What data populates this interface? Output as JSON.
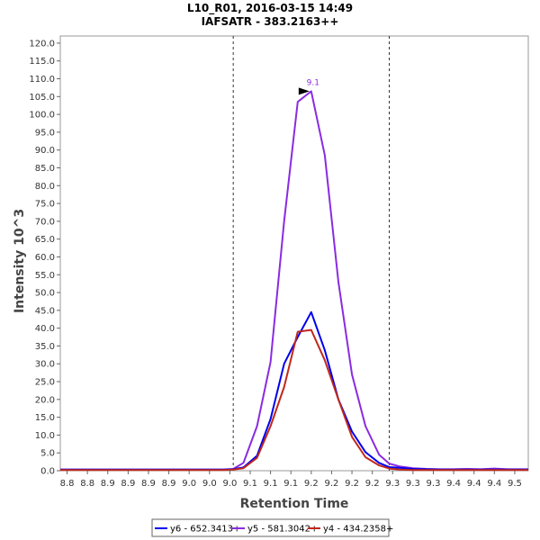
{
  "chart_data": {
    "type": "line",
    "title": "L10_R01, 2016-03-15 14:49",
    "subtitle": "IAFSATR - 383.2163++",
    "xlabel": "Retention Time",
    "ylabel": "Intensity 10^3",
    "xlim": [
      8.78,
      9.47
    ],
    "ylim": [
      0,
      122
    ],
    "yticks": [
      0.0,
      5.0,
      10.0,
      15.0,
      20.0,
      25.0,
      30.0,
      35.0,
      40.0,
      45.0,
      50.0,
      55.0,
      60.0,
      65.0,
      70.0,
      75.0,
      80.0,
      85.0,
      90.0,
      95.0,
      100.0,
      105.0,
      110.0,
      115.0,
      120.0
    ],
    "ytick_labels": [
      "0.0",
      "5.0",
      "10.0",
      "15.0",
      "20.0",
      "25.0",
      "30.0",
      "35.0",
      "40.0",
      "45.0",
      "50.0",
      "55.0",
      "60.0",
      "65.0",
      "70.0",
      "75.0",
      "80.0",
      "85.0",
      "90.0",
      "95.0",
      "100.0",
      "105.0",
      "110.0",
      "115.0",
      "120.0"
    ],
    "xticks": [
      8.79,
      8.82,
      8.85,
      8.88,
      8.91,
      8.94,
      8.97,
      9.0,
      9.03,
      9.06,
      9.09,
      9.12,
      9.15,
      9.18,
      9.21,
      9.24,
      9.27,
      9.3,
      9.33,
      9.36,
      9.39,
      9.42,
      9.45
    ],
    "xtick_labels": [
      "8.8",
      "8.8",
      "8.9",
      "8.9",
      "8.9",
      "8.9",
      "9.0",
      "9.0",
      "9.0",
      "9.1",
      "9.1",
      "9.1",
      "9.2",
      "9.2",
      "9.2",
      "9.2",
      "9.3",
      "9.3",
      "9.3",
      "9.4",
      "9.4",
      "9.4",
      "9.5"
    ],
    "boundaries": [
      9.035,
      9.265
    ],
    "x": [
      8.78,
      8.8,
      8.82,
      8.84,
      8.86,
      8.88,
      8.9,
      8.92,
      8.94,
      8.96,
      8.98,
      9.0,
      9.02,
      9.035,
      9.05,
      9.07,
      9.09,
      9.11,
      9.13,
      9.15,
      9.17,
      9.19,
      9.21,
      9.23,
      9.25,
      9.265,
      9.28,
      9.3,
      9.32,
      9.34,
      9.36,
      9.38,
      9.4,
      9.42,
      9.44,
      9.47
    ],
    "series": [
      {
        "name": "y6 - 652.3413+",
        "color": "#0000ee",
        "values": [
          0.3,
          0.3,
          0.3,
          0.3,
          0.3,
          0.3,
          0.3,
          0.3,
          0.3,
          0.3,
          0.3,
          0.3,
          0.3,
          0.4,
          0.9,
          4.2,
          14.5,
          30.0,
          37.5,
          44.5,
          33.8,
          20.0,
          11.0,
          5.2,
          2.2,
          1.0,
          0.8,
          0.5,
          0.4,
          0.3,
          0.3,
          0.3,
          0.3,
          0.3,
          0.3,
          0.3
        ]
      },
      {
        "name": "y5 - 581.3042+",
        "color": "#8a2be2",
        "values": [
          0.3,
          0.3,
          0.3,
          0.3,
          0.3,
          0.3,
          0.3,
          0.3,
          0.3,
          0.3,
          0.3,
          0.3,
          0.3,
          0.5,
          2.2,
          12.5,
          30.5,
          70.0,
          103.5,
          106.5,
          88.5,
          53.0,
          27.0,
          12.5,
          4.5,
          2.0,
          1.2,
          0.7,
          0.5,
          0.4,
          0.4,
          0.5,
          0.4,
          0.6,
          0.4,
          0.4
        ]
      },
      {
        "name": "y4 - 434.2358+",
        "color": "#c0281c",
        "values": [
          0.2,
          0.2,
          0.2,
          0.2,
          0.2,
          0.2,
          0.2,
          0.2,
          0.2,
          0.2,
          0.2,
          0.2,
          0.2,
          0.3,
          0.7,
          3.6,
          12.5,
          23.5,
          39.0,
          39.5,
          31.0,
          20.0,
          9.5,
          3.8,
          1.5,
          0.6,
          0.3,
          0.2,
          0.2,
          0.2,
          0.2,
          0.2,
          0.2,
          0.2,
          0.2,
          0.2
        ]
      }
    ],
    "annotation": {
      "text": "9.1",
      "x": 9.15,
      "y": 106.5
    },
    "legend_position": "bottom-center",
    "grid": false
  }
}
